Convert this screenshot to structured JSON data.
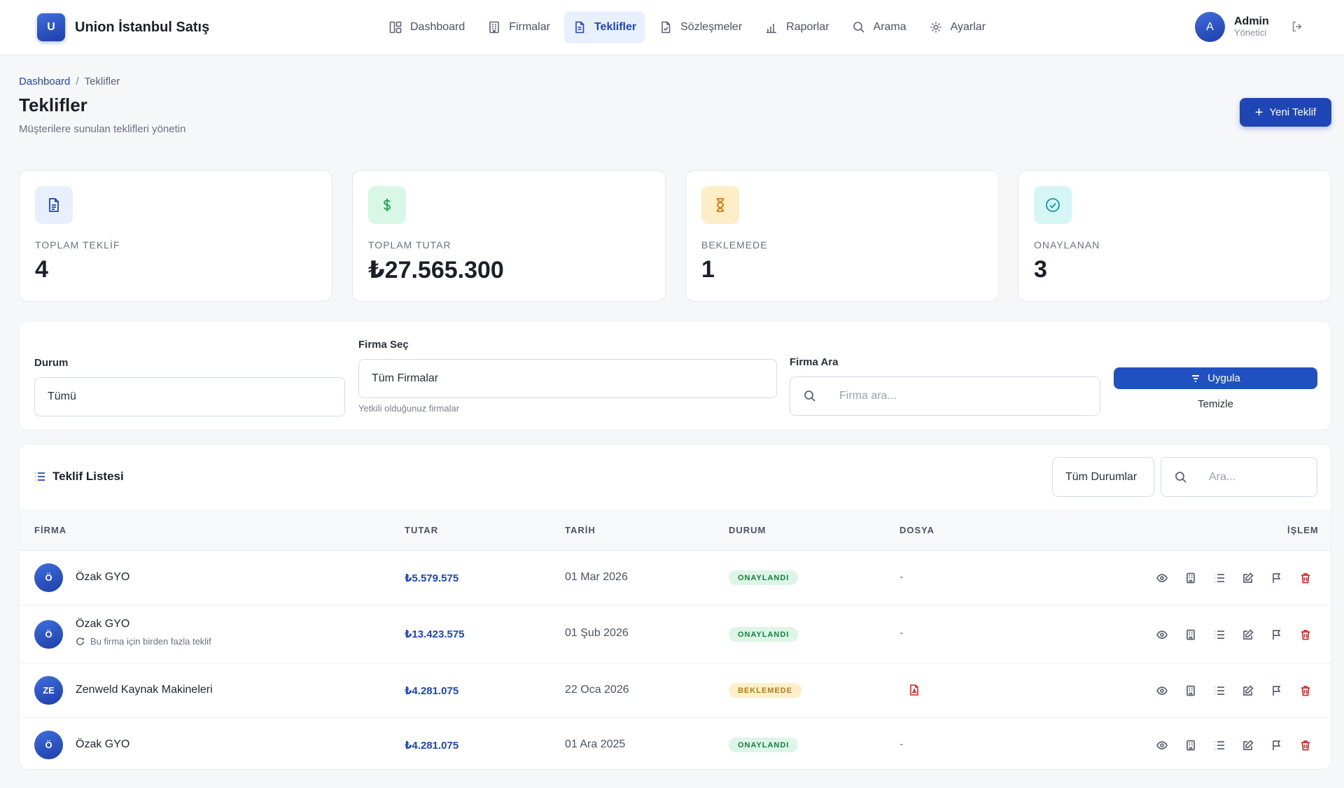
{
  "brand": {
    "logo_letter": "U",
    "name": "Union İstanbul Satış"
  },
  "nav": [
    {
      "label": "Dashboard",
      "icon": "dashboard-icon"
    },
    {
      "label": "Firmalar",
      "icon": "building-icon"
    },
    {
      "label": "Teklifler",
      "icon": "document-icon",
      "active": true
    },
    {
      "label": "Sözleşmeler",
      "icon": "contract-icon"
    },
    {
      "label": "Raporlar",
      "icon": "chart-icon"
    },
    {
      "label": "Arama",
      "icon": "search-icon"
    },
    {
      "label": "Ayarlar",
      "icon": "gear-icon"
    }
  ],
  "user": {
    "initial": "A",
    "name": "Admin",
    "role": "Yönetici"
  },
  "breadcrumb": {
    "home": "Dashboard",
    "separator": "/",
    "current": "Teklifler"
  },
  "page": {
    "title": "Teklifler",
    "subtitle": "Müşterilere sunulan teklifleri yönetin",
    "new_button": "Yeni Teklif"
  },
  "stats": [
    {
      "label": "TOPLAM TEKLİF",
      "value": "4",
      "icon": "document-icon",
      "bg": "#e8f0fd",
      "color": "#1e46b4"
    },
    {
      "label": "TOPLAM TUTAR",
      "value": "₺27.565.300",
      "icon": "dollar-icon",
      "bg": "#d9f7e6",
      "color": "#16a34a"
    },
    {
      "label": "BEKLEMEDE",
      "value": "1",
      "icon": "hourglass-icon",
      "bg": "#fdeec8",
      "color": "#d97706"
    },
    {
      "label": "ONAYLANAN",
      "value": "3",
      "icon": "check-circle-icon",
      "bg": "#d6f6f6",
      "color": "#0e9aa7"
    }
  ],
  "filters": {
    "status_label": "Durum",
    "status_value": "Tümü",
    "company_label": "Firma Seç",
    "company_value": "Tüm Firmalar",
    "company_hint": "Yetkili olduğunuz firmalar",
    "search_label": "Firma Ara",
    "search_placeholder": "Firma ara...",
    "apply": "Uygula",
    "clear": "Temizle"
  },
  "table": {
    "title": "Teklif Listesi",
    "status_filter": "Tüm Durumlar",
    "search_placeholder": "Ara...",
    "headers": {
      "company": "FİRMA",
      "amount": "TUTAR",
      "date": "TARİH",
      "status": "DURUM",
      "file": "DOSYA",
      "action": "İŞLEM"
    },
    "rows": [
      {
        "initials": "Ö",
        "company": "Özak GYO",
        "note": "",
        "amount": "₺5.579.575",
        "date": "01 Mar 2026",
        "status": "ONAYLANDI",
        "file": "-"
      },
      {
        "initials": "Ö",
        "company": "Özak GYO",
        "note": "Bu firma için birden fazla teklif",
        "amount": "₺13.423.575",
        "date": "01 Şub 2026",
        "status": "ONAYLANDI",
        "file": "-"
      },
      {
        "initials": "ZE",
        "company": "Zenweld Kaynak Makineleri",
        "note": "",
        "amount": "₺4.281.075",
        "date": "22 Oca 2026",
        "status": "BEKLEMEDE",
        "file": "pdf-icon"
      },
      {
        "initials": "Ö",
        "company": "Özak GYO",
        "note": "",
        "amount": "₺4.281.075",
        "date": "01 Ara 2025",
        "status": "ONAYLANDI",
        "file": "-"
      }
    ]
  },
  "colors": {
    "primary": "#1e46b4",
    "approved": "#15803d",
    "pending": "#b7791f",
    "danger": "#dc2626"
  }
}
